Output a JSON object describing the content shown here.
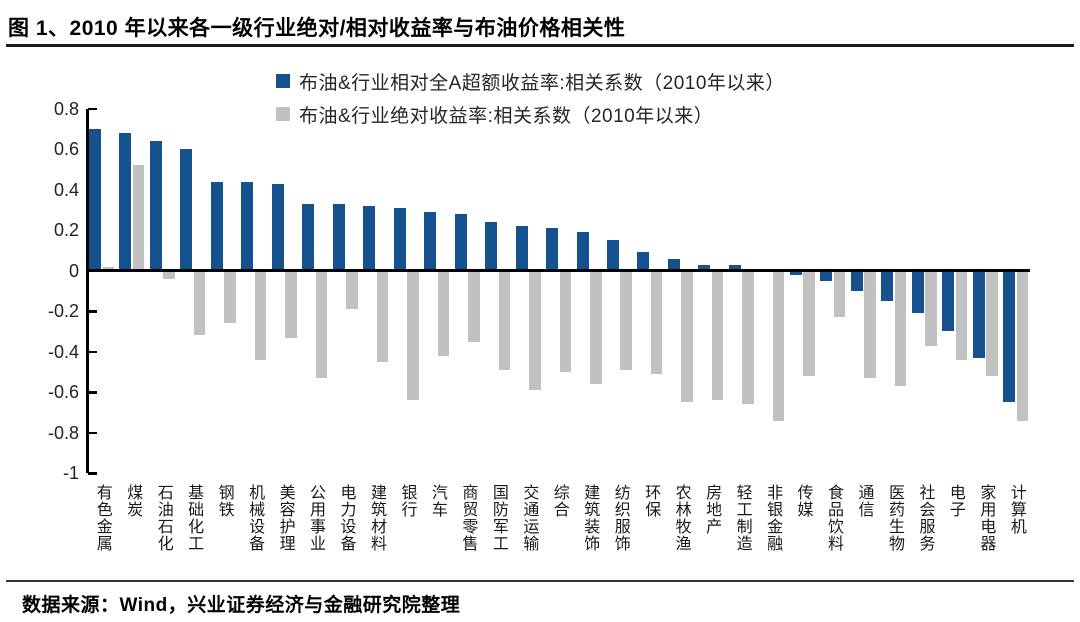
{
  "header": {
    "title": "图 1、2010 年以来各一级行业绝对/相对收益率与布油价格相关性"
  },
  "footer": {
    "source": "数据来源：Wind，兴业证券经济与金融研究院整理"
  },
  "colors": {
    "relative_series": "#15518E",
    "absolute_series": "#C1C1C1",
    "axis": "#000000"
  },
  "chart_data": {
    "type": "bar",
    "title": "",
    "legend_position": "top-center",
    "grid": false,
    "ylim": [
      -1,
      0.8
    ],
    "yticks": [
      0.8,
      0.6,
      0.4,
      0.2,
      0,
      -0.2,
      -0.4,
      -0.6,
      -0.8,
      -1
    ],
    "categories": [
      "有色金属",
      "煤炭",
      "石油石化",
      "基础化工",
      "钢铁",
      "机械设备",
      "美容护理",
      "公用事业",
      "电力设备",
      "建筑材料",
      "银行",
      "汽车",
      "商贸零售",
      "国防军工",
      "交通运输",
      "综合",
      "建筑装饰",
      "纺织服饰",
      "环保",
      "农林牧渔",
      "房地产",
      "轻工制造",
      "非银金融",
      "传媒",
      "食品饮料",
      "通信",
      "医药生物",
      "社会服务",
      "电子",
      "家用电器",
      "计算机"
    ],
    "series": [
      {
        "name": "布油&行业相对全A超额收益率:相关系数（2010年以来）",
        "color": "#15518E",
        "values": [
          0.7,
          0.68,
          0.64,
          0.6,
          0.44,
          0.44,
          0.43,
          0.33,
          0.33,
          0.32,
          0.31,
          0.29,
          0.28,
          0.24,
          0.22,
          0.21,
          0.19,
          0.15,
          0.09,
          0.06,
          0.03,
          0.03,
          0.0,
          -0.02,
          -0.05,
          -0.1,
          -0.15,
          -0.21,
          -0.3,
          -0.43,
          -0.65
        ]
      },
      {
        "name": "布油&行业绝对收益率:相关系数（2010年以来）",
        "color": "#C1C1C1",
        "values": [
          0.02,
          0.52,
          -0.04,
          -0.32,
          -0.26,
          -0.44,
          -0.33,
          -0.53,
          -0.19,
          -0.45,
          -0.64,
          -0.42,
          -0.35,
          -0.49,
          -0.59,
          -0.5,
          -0.56,
          -0.49,
          -0.51,
          -0.65,
          -0.64,
          -0.66,
          -0.74,
          -0.52,
          -0.23,
          -0.53,
          -0.57,
          -0.37,
          -0.44,
          -0.52,
          -0.74
        ]
      }
    ]
  }
}
